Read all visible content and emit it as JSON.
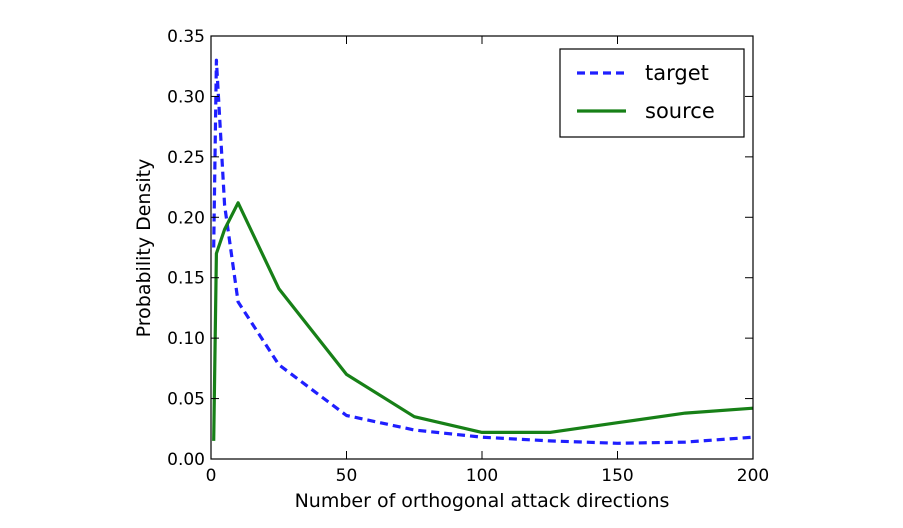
{
  "chart_data": {
    "type": "line",
    "xlabel": "Number of orthogonal attack directions",
    "ylabel": "Probability Density",
    "xlim": [
      0,
      200
    ],
    "ylim": [
      0,
      0.35
    ],
    "xticks": [
      0,
      50,
      100,
      150,
      200
    ],
    "yticks": [
      0.0,
      0.05,
      0.1,
      0.15,
      0.2,
      0.25,
      0.3,
      0.35
    ],
    "xtick_labels": [
      "0",
      "50",
      "100",
      "150",
      "200"
    ],
    "ytick_labels": [
      "0.00",
      "0.05",
      "0.10",
      "0.15",
      "0.20",
      "0.25",
      "0.30",
      "0.35"
    ],
    "grid": false,
    "legend_position": "top-right",
    "series": [
      {
        "name": "target",
        "color": "#1f1fff",
        "style": "dashed",
        "x": [
          1,
          2,
          5,
          10,
          25,
          50,
          75,
          100,
          125,
          150,
          175,
          200
        ],
        "y": [
          0.175,
          0.33,
          0.21,
          0.13,
          0.078,
          0.036,
          0.024,
          0.018,
          0.015,
          0.013,
          0.014,
          0.018
        ]
      },
      {
        "name": "source",
        "color": "#178017",
        "style": "solid",
        "x": [
          1,
          2,
          5,
          10,
          25,
          50,
          75,
          100,
          125,
          150,
          175,
          200
        ],
        "y": [
          0.015,
          0.17,
          0.19,
          0.212,
          0.141,
          0.07,
          0.035,
          0.022,
          0.022,
          0.03,
          0.038,
          0.042
        ]
      }
    ]
  }
}
